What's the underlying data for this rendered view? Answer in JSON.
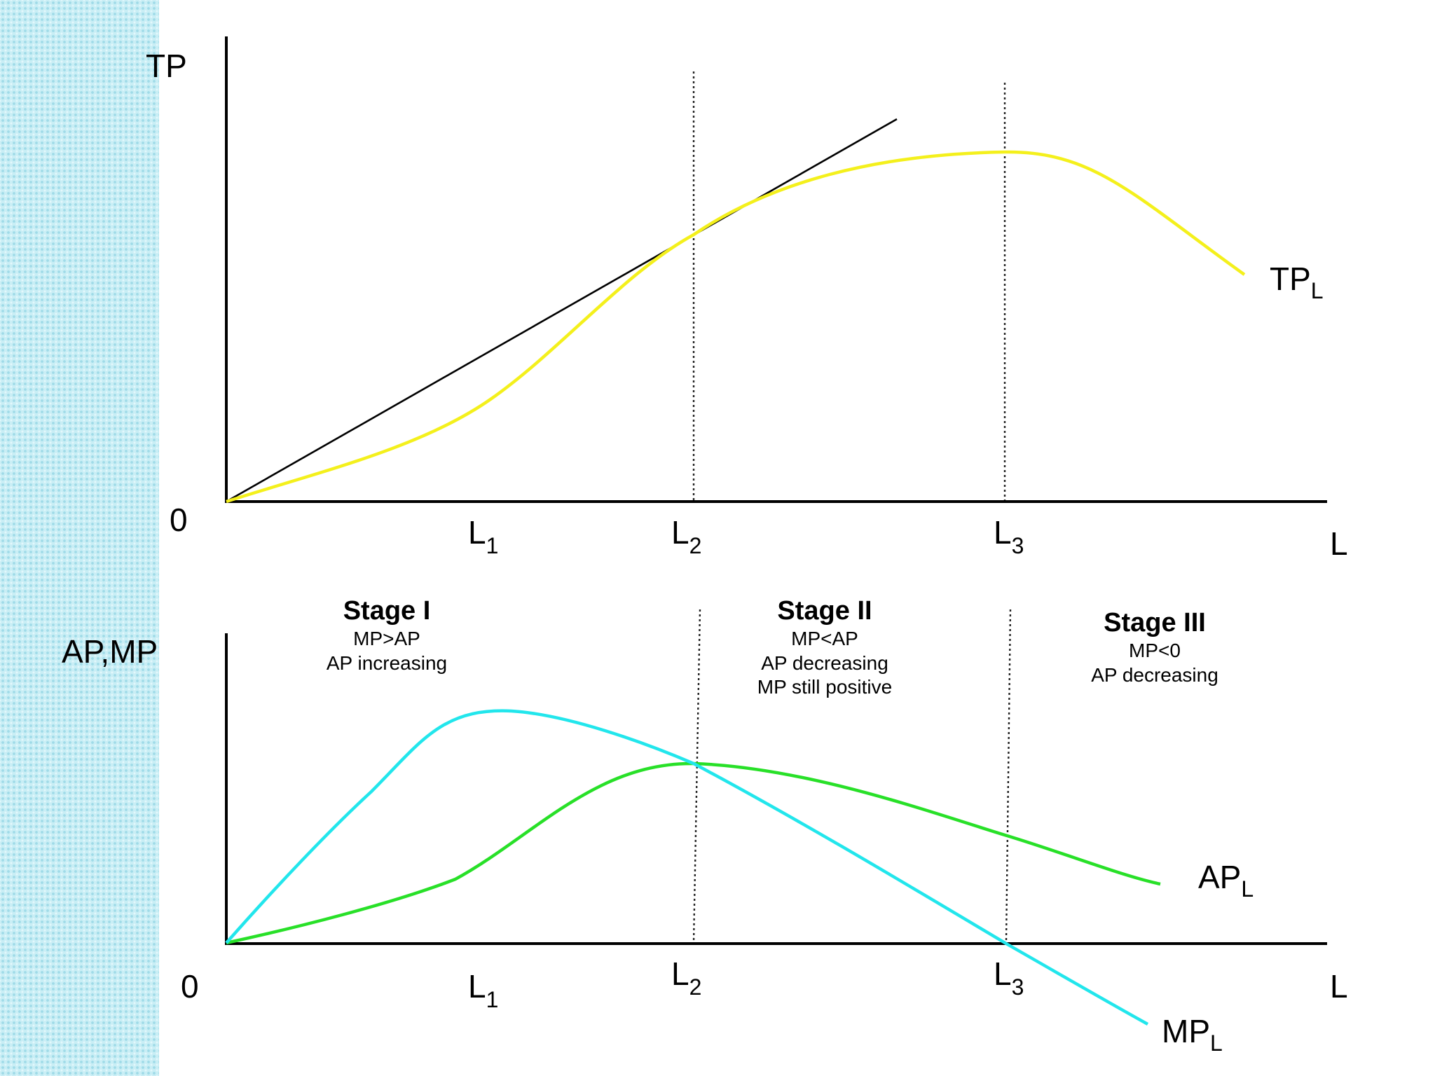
{
  "colors": {
    "tp_curve": "#f4f01c",
    "ap_curve": "#28e028",
    "mp_curve": "#22e6ec",
    "ray": "#000000",
    "side_strip": "#c9eef5"
  },
  "top_panel": {
    "y_axis_label": "TP",
    "origin_label": "0",
    "x_axis_label": "L",
    "ticks": [
      {
        "base": "L",
        "sub": "1"
      },
      {
        "base": "L",
        "sub": "2"
      },
      {
        "base": "L",
        "sub": "3"
      }
    ],
    "curve_label": {
      "base": "TP",
      "sub": "L"
    }
  },
  "bottom_panel": {
    "y_axis_label": "AP,MP",
    "origin_label": "0",
    "x_axis_label": "L",
    "ticks": [
      {
        "base": "L",
        "sub": "1"
      },
      {
        "base": "L",
        "sub": "2"
      },
      {
        "base": "L",
        "sub": "3"
      }
    ],
    "ap_label": {
      "base": "AP",
      "sub": "L"
    },
    "mp_label": {
      "base": "MP",
      "sub": "L"
    }
  },
  "stages": [
    {
      "title": "Stage I",
      "lines": [
        "MP>AP",
        "AP increasing"
      ]
    },
    {
      "title": "Stage II",
      "lines": [
        "MP<AP",
        "AP decreasing",
        "MP still positive"
      ]
    },
    {
      "title": "Stage III",
      "lines": [
        "MP<0",
        "AP decreasing"
      ]
    }
  ]
}
